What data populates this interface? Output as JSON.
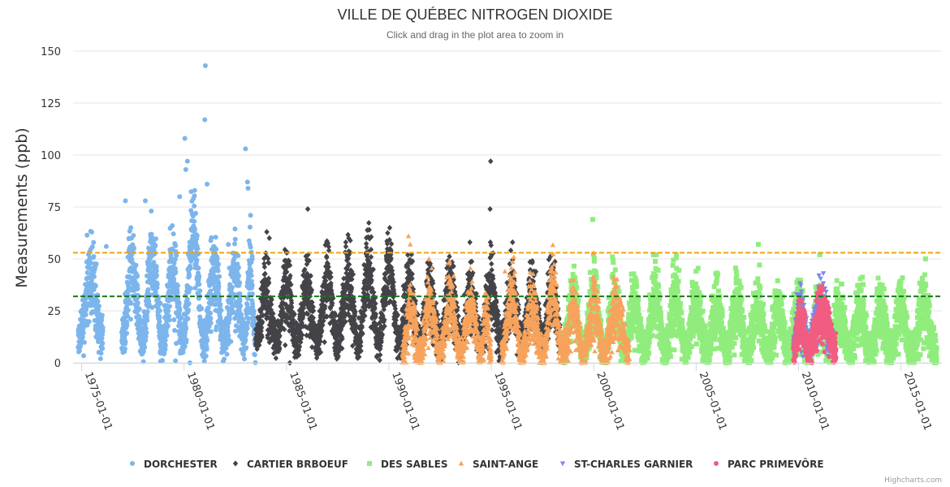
{
  "chart_data": {
    "type": "scatter",
    "title": "VILLE DE QUÉBEC NITROGEN DIOXIDE",
    "subtitle": "Click and drag in the plot area to zoom in",
    "xlabel": "",
    "ylabel": "Measurements (ppb)",
    "x_type": "date",
    "xlim": [
      "1974-08-01",
      "2016-12-31"
    ],
    "ylim": [
      0,
      150
    ],
    "y_ticks": [
      0,
      25,
      50,
      75,
      100,
      125,
      150
    ],
    "x_ticks": [
      "1975-01-01",
      "1980-01-01",
      "1985-01-01",
      "1990-01-01",
      "1995-01-01",
      "2000-01-01",
      "2005-01-01",
      "2010-01-01",
      "2015-01-01"
    ],
    "grid": true,
    "legend_position": "bottom",
    "plot_lines": [
      {
        "value": 53,
        "color": "#f0a30a",
        "style": "dashed"
      },
      {
        "value": 32,
        "color": "#1a7a1a",
        "style": "dashed"
      }
    ],
    "series": [
      {
        "name": "DORCHESTER",
        "color": "#7cb5ec",
        "marker": "circle",
        "date_range": [
          "1974-11-01",
          "1983-07-01"
        ],
        "level": 23,
        "spread": 9,
        "seasons": [
          {
            "start": "1974-11-01",
            "end": "1976-01-15",
            "peak": 47
          },
          {
            "start": "1976-12-15",
            "end": "1977-12-15",
            "peak": 55
          },
          {
            "start": "1977-12-15",
            "end": "1978-12-15",
            "peak": 60
          },
          {
            "start": "1978-12-15",
            "end": "1979-12-15",
            "peak": 52
          },
          {
            "start": "1979-12-15",
            "end": "1980-12-15",
            "peak": 72
          },
          {
            "start": "1980-12-15",
            "end": "1981-12-15",
            "peak": 50
          },
          {
            "start": "1981-12-15",
            "end": "1982-12-15",
            "peak": 47
          },
          {
            "start": "1982-12-15",
            "end": "1983-07-01",
            "peak": 50
          }
        ],
        "gaps": [
          [
            "1976-01-15",
            "1976-12-15"
          ]
        ],
        "notable_points": [
          {
            "x": "1976-03-15",
            "y": 56
          },
          {
            "x": "1977-02-20",
            "y": 78
          },
          {
            "x": "1978-02-10",
            "y": 78
          },
          {
            "x": "1979-10-15",
            "y": 80
          },
          {
            "x": "1980-01-15",
            "y": 108
          },
          {
            "x": "1980-03-01",
            "y": 97
          },
          {
            "x": "1980-02-01",
            "y": 93
          },
          {
            "x": "1981-01-15",
            "y": 143
          },
          {
            "x": "1981-01-05",
            "y": 117
          },
          {
            "x": "1981-02-15",
            "y": 86
          },
          {
            "x": "1982-03-01",
            "y": 57
          },
          {
            "x": "1983-01-01",
            "y": 103
          },
          {
            "x": "1983-02-05",
            "y": 87
          },
          {
            "x": "1983-02-15",
            "y": 84
          },
          {
            "x": "1983-04-01",
            "y": 71
          },
          {
            "x": "1980-04-15",
            "y": 0
          },
          {
            "x": "1979-08-01",
            "y": 1
          }
        ]
      },
      {
        "name": "CARTIER BRBOEUF",
        "color": "#434348",
        "marker": "diamond",
        "date_range": [
          "1983-07-01",
          "1998-06-01"
        ],
        "level": 22,
        "spread": 8,
        "seasons": [
          {
            "start": "1983-07-01",
            "end": "1984-07-01",
            "peak": 38
          },
          {
            "start": "1984-07-01",
            "end": "1985-07-01",
            "peak": 42
          },
          {
            "start": "1985-07-01",
            "end": "1986-07-01",
            "peak": 40
          },
          {
            "start": "1986-07-01",
            "end": "1987-07-01",
            "peak": 45
          },
          {
            "start": "1987-07-01",
            "end": "1988-07-01",
            "peak": 48
          },
          {
            "start": "1988-07-01",
            "end": "1989-07-01",
            "peak": 52
          },
          {
            "start": "1989-07-01",
            "end": "1990-07-01",
            "peak": 55
          },
          {
            "start": "1990-07-01",
            "end": "1991-07-01",
            "peak": 40
          },
          {
            "start": "1991-07-01",
            "end": "1992-07-01",
            "peak": 35
          },
          {
            "start": "1992-07-01",
            "end": "1993-07-01",
            "peak": 42
          },
          {
            "start": "1993-07-01",
            "end": "1994-07-01",
            "peak": 36
          },
          {
            "start": "1994-07-01",
            "end": "1995-07-01",
            "peak": 40
          },
          {
            "start": "1995-07-01",
            "end": "1996-07-01",
            "peak": 38
          },
          {
            "start": "1996-07-01",
            "end": "1997-07-01",
            "peak": 40
          },
          {
            "start": "1997-07-01",
            "end": "1998-06-01",
            "peak": 42
          }
        ],
        "gaps": [],
        "notable_points": [
          {
            "x": "1984-01-15",
            "y": 63
          },
          {
            "x": "1984-03-01",
            "y": 60
          },
          {
            "x": "1985-01-01",
            "y": 53
          },
          {
            "x": "1986-01-15",
            "y": 74
          },
          {
            "x": "1988-01-15",
            "y": 60
          },
          {
            "x": "1989-01-15",
            "y": 64
          },
          {
            "x": "1990-01-15",
            "y": 65
          },
          {
            "x": "1994-12-20",
            "y": 97
          },
          {
            "x": "1994-12-10",
            "y": 74
          },
          {
            "x": "1994-12-15",
            "y": 58
          },
          {
            "x": "1993-12-15",
            "y": 58
          },
          {
            "x": "1996-01-15",
            "y": 58
          },
          {
            "x": "1985-03-01",
            "y": 0
          }
        ]
      },
      {
        "name": "DES SABLES",
        "color": "#90ed7d",
        "marker": "square",
        "date_range": [
          "1998-07-01",
          "2016-10-01"
        ],
        "level": 12,
        "spread": 7,
        "seasons": [
          {
            "start": "1998-07-01",
            "end": "1999-07-01",
            "peak": 35
          },
          {
            "start": "1999-07-01",
            "end": "2000-07-01",
            "peak": 38
          },
          {
            "start": "2000-07-01",
            "end": "2001-07-01",
            "peak": 36
          },
          {
            "start": "2001-07-01",
            "end": "2002-07-01",
            "peak": 34
          },
          {
            "start": "2002-07-01",
            "end": "2003-07-01",
            "peak": 38
          },
          {
            "start": "2003-07-01",
            "end": "2004-07-01",
            "peak": 36
          },
          {
            "start": "2004-07-01",
            "end": "2005-07-01",
            "peak": 34
          },
          {
            "start": "2005-07-01",
            "end": "2006-07-01",
            "peak": 32
          },
          {
            "start": "2006-07-01",
            "end": "2007-07-01",
            "peak": 31
          },
          {
            "start": "2007-07-01",
            "end": "2008-07-01",
            "peak": 32
          },
          {
            "start": "2008-07-01",
            "end": "2009-07-01",
            "peak": 30
          },
          {
            "start": "2009-07-01",
            "end": "2010-07-01",
            "peak": 30
          },
          {
            "start": "2010-07-01",
            "end": "2011-07-01",
            "peak": 29
          },
          {
            "start": "2011-07-01",
            "end": "2012-07-01",
            "peak": 29
          },
          {
            "start": "2012-07-01",
            "end": "2013-07-01",
            "peak": 30
          },
          {
            "start": "2013-07-01",
            "end": "2014-07-01",
            "peak": 30
          },
          {
            "start": "2014-07-01",
            "end": "2015-07-01",
            "peak": 30
          },
          {
            "start": "2015-07-01",
            "end": "2016-10-01",
            "peak": 30
          }
        ],
        "gaps": [],
        "notable_points": [
          {
            "x": "1999-12-15",
            "y": 69
          },
          {
            "x": "2002-12-01",
            "y": 52
          },
          {
            "x": "2004-01-15",
            "y": 52
          },
          {
            "x": "2008-01-15",
            "y": 57
          },
          {
            "x": "2011-01-15",
            "y": 52
          }
        ]
      },
      {
        "name": "SAINT-ANGE",
        "color": "#f7a35c",
        "marker": "triangle",
        "date_range": [
          "1990-09-01",
          "2001-10-01"
        ],
        "level": 10,
        "spread": 7,
        "seasons": [
          {
            "start": "1990-09-01",
            "end": "1991-07-01",
            "peak": 30
          },
          {
            "start": "1991-07-01",
            "end": "1992-07-01",
            "peak": 32
          },
          {
            "start": "1992-07-01",
            "end": "1993-07-01",
            "peak": 34
          },
          {
            "start": "1993-07-01",
            "end": "1994-07-01",
            "peak": 30
          },
          {
            "start": "1994-07-01",
            "end": "1995-01-01",
            "peak": 30
          },
          {
            "start": "1995-07-01",
            "end": "1996-07-01",
            "peak": 40
          },
          {
            "start": "1996-07-01",
            "end": "1997-07-01",
            "peak": 33
          },
          {
            "start": "1997-07-01",
            "end": "1998-07-01",
            "peak": 42
          },
          {
            "start": "1998-07-01",
            "end": "1999-07-01",
            "peak": 30
          },
          {
            "start": "1999-07-01",
            "end": "2000-07-01",
            "peak": 32
          },
          {
            "start": "2000-07-01",
            "end": "2001-10-01",
            "peak": 30
          }
        ],
        "gaps": [
          [
            "1995-01-01",
            "1995-07-01"
          ]
        ],
        "notable_points": [
          {
            "x": "1990-12-15",
            "y": 61
          },
          {
            "x": "1991-01-15",
            "y": 57
          },
          {
            "x": "1991-12-15",
            "y": 50
          },
          {
            "x": "1997-12-15",
            "y": 46
          },
          {
            "x": "1997-11-15",
            "y": 44
          },
          {
            "x": "1995-09-01",
            "y": 44
          }
        ]
      },
      {
        "name": "ST-CHARLES GARNIER",
        "color": "#8085e9",
        "marker": "triangle-down",
        "date_range": [
          "2009-10-01",
          "2011-10-01"
        ],
        "level": 18,
        "spread": 7,
        "seasons": [
          {
            "start": "2009-10-01",
            "end": "2010-07-01",
            "peak": 28
          },
          {
            "start": "2010-07-01",
            "end": "2011-10-01",
            "peak": 30
          }
        ],
        "gaps": [],
        "notable_points": [
          {
            "x": "2011-01-01",
            "y": 42
          },
          {
            "x": "2009-12-01",
            "y": 33
          },
          {
            "x": "2010-12-01",
            "y": 31
          }
        ]
      },
      {
        "name": "PARC PRIMEVÔRE",
        "color": "#f15c80",
        "marker": "circle",
        "date_range": [
          "2009-10-01",
          "2011-11-01"
        ],
        "level": 13,
        "spread": 6,
        "seasons": [
          {
            "start": "2009-10-01",
            "end": "2010-07-01",
            "peak": 25
          },
          {
            "start": "2010-07-01",
            "end": "2011-11-01",
            "peak": 28
          }
        ],
        "gaps": [],
        "notable_points": [
          {
            "x": "2011-01-01",
            "y": 36
          },
          {
            "x": "2010-11-15",
            "y": 30
          },
          {
            "x": "2011-07-01",
            "y": 3
          }
        ]
      }
    ]
  },
  "credits": "Highcharts.com"
}
